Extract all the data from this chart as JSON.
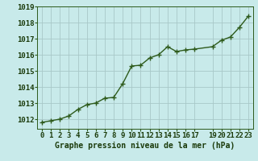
{
  "x": [
    0,
    1,
    2,
    3,
    4,
    5,
    6,
    7,
    8,
    9,
    10,
    11,
    12,
    13,
    14,
    15,
    16,
    17,
    19,
    20,
    21,
    22,
    23
  ],
  "y": [
    1011.8,
    1011.9,
    1012.0,
    1012.2,
    1012.6,
    1012.9,
    1013.0,
    1013.3,
    1013.35,
    1014.2,
    1015.3,
    1015.35,
    1015.8,
    1016.0,
    1016.5,
    1016.2,
    1016.3,
    1016.35,
    1016.5,
    1016.9,
    1017.1,
    1017.7,
    1018.4
  ],
  "xlabel": "Graphe pression niveau de la mer (hPa)",
  "xticks": [
    0,
    1,
    2,
    3,
    4,
    5,
    6,
    7,
    8,
    9,
    10,
    11,
    12,
    13,
    14,
    15,
    16,
    17,
    19,
    20,
    21,
    22,
    23
  ],
  "yticks": [
    1012,
    1013,
    1014,
    1015,
    1016,
    1017,
    1018,
    1019
  ],
  "ylim": [
    1011.4,
    1019.0
  ],
  "xlim": [
    -0.5,
    23.5
  ],
  "line_color": "#2d5a1b",
  "marker": "+",
  "bg_color": "#c8eaea",
  "grid_color": "#a8c8c8",
  "xlabel_color": "#1a3a0a",
  "xlabel_fontsize": 7.0,
  "tick_fontsize": 6.5,
  "linewidth": 1.0,
  "markersize": 4,
  "markeredgewidth": 1.0
}
